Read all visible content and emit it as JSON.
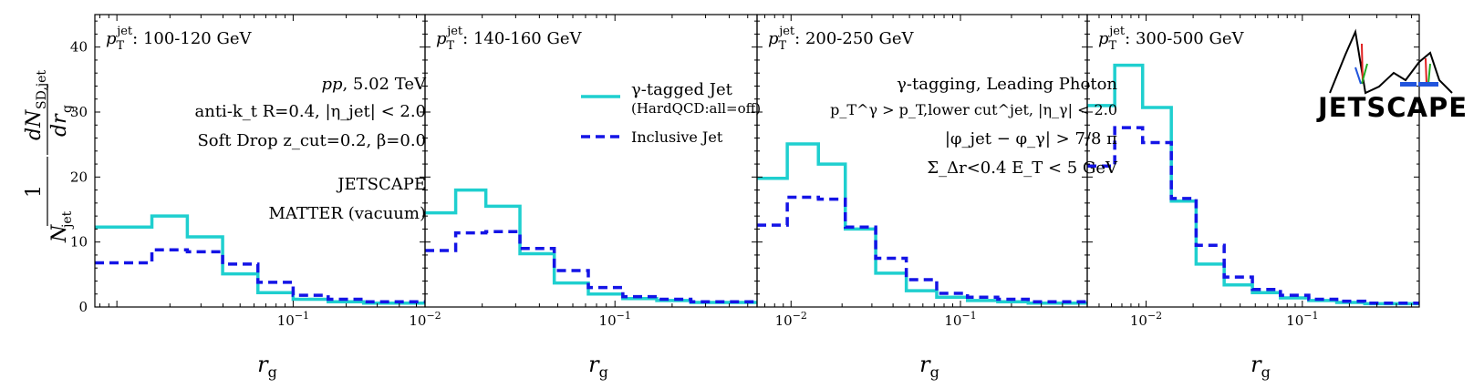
{
  "figure": {
    "ylabel": "1/N_jet dN_SD,jet/dr_g",
    "ylabel_frac": "1",
    "ylabel_num": "dN",
    "ylabel_num_sub": "SD,jet",
    "ylabel_den": "N",
    "ylabel_den_sub": "jet",
    "ylabel_outer_den": "dr",
    "ylabel_outer_den_sub": "g",
    "xlabel": "r",
    "xlabel_sub": "g",
    "logo_text": "JETSCAPE"
  },
  "annotations": {
    "collision": "pp",
    "energy": ", 5.02 TeV",
    "algo": "anti-k_t R=0.4, |η_jet| < 2.0",
    "softdrop": "Soft Drop z_cut=0.2, β=0.0",
    "generator": "JETSCAPE",
    "model": "MATTER (vacuum)",
    "tagging": "γ-tagging, Leading Photon",
    "photon_cut": "p_T^γ > p_T,lower cut^jet, |η_γ| < 2.0",
    "phi_cut": "|φ_jet − φ_γ| > 7/8 π",
    "isolation": "Σ_Δr<0.4 E_T < 5 GeV"
  },
  "legend": {
    "gamma_label": "γ-tagged Jet",
    "gamma_sub": "(HardQCD:all=off)",
    "inclusive_label": "Inclusive Jet"
  },
  "colors": {
    "gamma": "#1fcfcf",
    "inclusive": "#1414e6",
    "frame": "#000000"
  },
  "chart_data": [
    {
      "type": "line",
      "panel_label": "p_T^jet: 100-120 GeV",
      "pt_range": "100-120 GeV",
      "xscale": "log",
      "xlim": [
        0.0075,
        0.56
      ],
      "ylim": [
        0,
        45
      ],
      "yticks": [
        0,
        10,
        20,
        30,
        40
      ],
      "xticks": [
        0.1
      ],
      "xlabel": "r_g",
      "series": [
        {
          "name": "γ-tagged Jet (HardQCD:all=off)",
          "style": "solid",
          "edges": [
            0.0075,
            0.0158,
            0.0251,
            0.0398,
            0.0631,
            0.1,
            0.158,
            0.251,
            0.56
          ],
          "values": [
            12.3,
            14.0,
            10.8,
            5.1,
            2.2,
            1.2,
            0.8,
            0.6
          ]
        },
        {
          "name": "Inclusive Jet",
          "style": "dashed",
          "edges": [
            0.0075,
            0.0158,
            0.0251,
            0.0398,
            0.0631,
            0.1,
            0.158,
            0.251,
            0.56
          ],
          "values": [
            6.8,
            8.8,
            8.5,
            6.6,
            3.8,
            1.8,
            1.2,
            0.8
          ]
        }
      ]
    },
    {
      "type": "line",
      "panel_label": "p_T^jet: 140-160 GeV",
      "pt_range": "140-160 GeV",
      "xscale": "log",
      "xlim": [
        0.01,
        0.56
      ],
      "ylim": [
        0,
        45
      ],
      "yticks": [
        0,
        10,
        20,
        30,
        40
      ],
      "xticks": [
        0.01,
        0.1
      ],
      "xlabel": "r_g",
      "series": [
        {
          "name": "γ-tagged Jet (HardQCD:all=off)",
          "style": "solid",
          "edges": [
            0.01,
            0.0145,
            0.0209,
            0.0316,
            0.0479,
            0.0724,
            0.11,
            0.166,
            0.251,
            0.56
          ],
          "values": [
            14.5,
            18.0,
            15.5,
            8.2,
            3.7,
            2.0,
            1.3,
            1.0,
            0.7
          ]
        },
        {
          "name": "Inclusive Jet",
          "style": "dashed",
          "edges": [
            0.01,
            0.0145,
            0.0209,
            0.0316,
            0.0479,
            0.0724,
            0.11,
            0.166,
            0.251,
            0.56
          ],
          "values": [
            8.7,
            11.4,
            11.6,
            9.0,
            5.6,
            3.0,
            1.6,
            1.2,
            0.8
          ]
        }
      ]
    },
    {
      "type": "line",
      "panel_label": "p_T^jet: 200-250 GeV",
      "pt_range": "200-250 GeV",
      "xscale": "log",
      "xlim": [
        0.0063,
        0.56
      ],
      "ylim": [
        0,
        45
      ],
      "yticks": [
        0,
        10,
        20,
        30,
        40
      ],
      "xticks": [
        0.01,
        0.1
      ],
      "xlabel": "r_g",
      "series": [
        {
          "name": "γ-tagged Jet (HardQCD:all=off)",
          "style": "solid",
          "edges": [
            0.0063,
            0.0095,
            0.0145,
            0.0209,
            0.0316,
            0.0479,
            0.0724,
            0.11,
            0.166,
            0.251,
            0.56
          ],
          "values": [
            19.8,
            25.1,
            22.0,
            12.0,
            5.2,
            2.5,
            1.5,
            1.0,
            0.8,
            0.6
          ]
        },
        {
          "name": "Inclusive Jet",
          "style": "dashed",
          "edges": [
            0.0063,
            0.0095,
            0.0145,
            0.0209,
            0.0316,
            0.0479,
            0.0724,
            0.11,
            0.166,
            0.251,
            0.56
          ],
          "values": [
            12.6,
            16.9,
            16.6,
            12.3,
            7.5,
            4.2,
            2.1,
            1.5,
            1.2,
            0.8
          ]
        }
      ]
    },
    {
      "type": "line",
      "panel_label": "p_T^jet: 300-500 GeV",
      "pt_range": "300-500 GeV",
      "xscale": "log",
      "xlim": [
        0.0042,
        0.56
      ],
      "ylim": [
        0,
        45
      ],
      "yticks": [
        0,
        10,
        20,
        30,
        40
      ],
      "xticks": [
        0.01,
        0.1
      ],
      "xlabel": "r_g",
      "series": [
        {
          "name": "γ-tagged Jet (HardQCD:all=off)",
          "style": "solid",
          "edges": [
            0.0042,
            0.0063,
            0.0095,
            0.0145,
            0.0209,
            0.0316,
            0.0479,
            0.0724,
            0.11,
            0.166,
            0.251,
            0.56
          ],
          "values": [
            31.0,
            37.2,
            30.7,
            16.3,
            6.6,
            3.4,
            2.2,
            1.4,
            1.0,
            0.7,
            0.5
          ]
        },
        {
          "name": "Inclusive Jet",
          "style": "dashed",
          "edges": [
            0.0042,
            0.0063,
            0.0095,
            0.0145,
            0.0209,
            0.0316,
            0.0479,
            0.0724,
            0.11,
            0.166,
            0.251,
            0.56
          ],
          "values": [
            21.7,
            27.6,
            25.3,
            16.7,
            9.5,
            4.6,
            2.7,
            1.8,
            1.2,
            0.9,
            0.6
          ]
        }
      ]
    }
  ]
}
